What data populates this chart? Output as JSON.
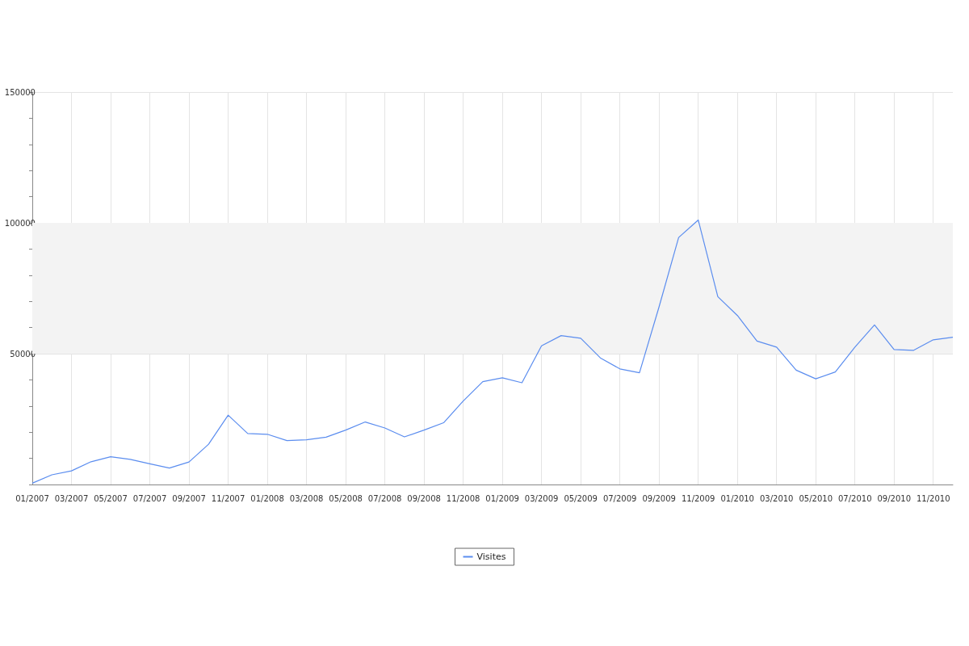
{
  "chart_data": {
    "type": "line",
    "categories": [
      "01/2007",
      null,
      "03/2007",
      null,
      "05/2007",
      null,
      "07/2007",
      null,
      "09/2007",
      null,
      "11/2007",
      null,
      "01/2008",
      null,
      "03/2008",
      null,
      "05/2008",
      null,
      "07/2008",
      null,
      "09/2008",
      null,
      "11/2008",
      null,
      "01/2009",
      null,
      "03/2009",
      null,
      "05/2009",
      null,
      "07/2009",
      null,
      "09/2009",
      null,
      "11/2009",
      null,
      "01/2010",
      null,
      "03/2010",
      null,
      "05/2010",
      null,
      "07/2010",
      null,
      "09/2010",
      null,
      "11/2010",
      null
    ],
    "series": [
      {
        "name": "Visites",
        "color": "#5b8def",
        "values": [
          500,
          3700,
          5200,
          8700,
          10600,
          9600,
          7900,
          6300,
          8600,
          15400,
          26500,
          19500,
          19200,
          16800,
          17100,
          18100,
          20800,
          23900,
          21600,
          18200,
          20800,
          23600,
          31900,
          39300,
          40800,
          38900,
          53000,
          56900,
          55900,
          48400,
          44200,
          42700,
          67900,
          94400,
          101100,
          71800,
          64600,
          54800,
          52500,
          43700,
          40400,
          43000,
          52500,
          61000,
          51600,
          51300,
          55300,
          56300
        ]
      }
    ],
    "ylim": [
      0,
      150000
    ],
    "yticks": [
      {
        "value": 0,
        "label": null
      },
      {
        "value": 10000,
        "label": null
      },
      {
        "value": 20000,
        "label": null
      },
      {
        "value": 30000,
        "label": null
      },
      {
        "value": 40000,
        "label": null
      },
      50000,
      {
        "value": 60000,
        "label": null
      },
      {
        "value": 70000,
        "label": null
      },
      {
        "value": 80000,
        "label": null
      },
      {
        "value": 90000,
        "label": null
      },
      100000,
      {
        "value": 110000,
        "label": null
      },
      {
        "value": 120000,
        "label": null
      },
      {
        "value": 130000,
        "label": null
      },
      {
        "value": 140000,
        "label": null
      },
      150000
    ],
    "bands": [
      {
        "axis": "y",
        "from": 50000,
        "to": 100000,
        "color": "#f3f3f3"
      }
    ],
    "grid": true,
    "legend": "bottom",
    "marker": "none",
    "line_style": "solid"
  }
}
